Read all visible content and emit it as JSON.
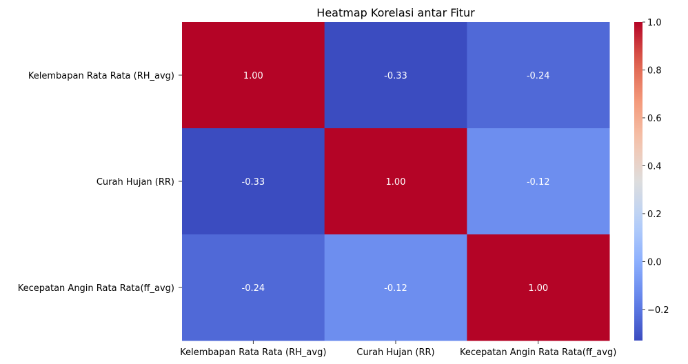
{
  "chart_data": {
    "type": "heatmap",
    "title": "Heatmap Korelasi antar Fitur",
    "x_categories": [
      "Kelembapan Rata Rata  (RH_avg)",
      "Curah Hujan (RR)",
      "Kecepatan Angin Rata Rata(ff_avg)"
    ],
    "y_categories": [
      "Kelembapan Rata Rata  (RH_avg)",
      "Curah Hujan (RR)",
      "Kecepatan Angin Rata Rata(ff_avg)"
    ],
    "values": [
      [
        1.0,
        -0.33,
        -0.24
      ],
      [
        -0.33,
        1.0,
        -0.12
      ],
      [
        -0.24,
        -0.12,
        1.0
      ]
    ],
    "cell_labels": [
      [
        "1.00",
        "-0.33",
        "-0.24"
      ],
      [
        "-0.33",
        "1.00",
        "-0.12"
      ],
      [
        "-0.24",
        "-0.12",
        "1.00"
      ]
    ],
    "colormap": "coolwarm",
    "vmin": -0.33,
    "vmax": 1.0,
    "colorbar": {
      "ticks": [
        -0.2,
        0.0,
        0.2,
        0.4,
        0.6,
        0.8,
        1.0
      ],
      "tick_labels": [
        "−0.2",
        "0.0",
        "0.2",
        "0.4",
        "0.6",
        "0.8",
        "1.0"
      ],
      "placement": "right"
    },
    "xlabel": "",
    "ylabel": ""
  }
}
